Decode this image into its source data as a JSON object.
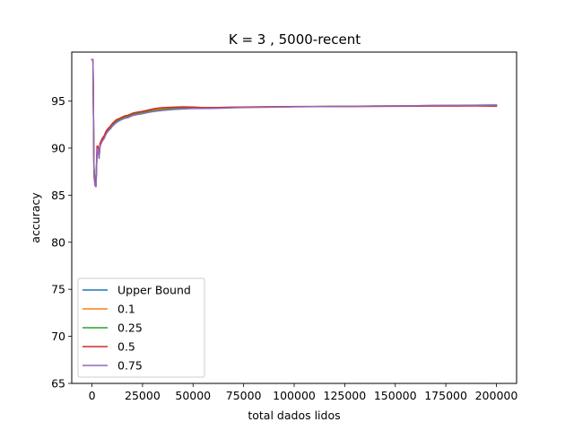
{
  "chart_data": {
    "type": "line",
    "title": "K = 3 , 5000-recent",
    "xlabel": "total dados lidos",
    "ylabel": "accuracy",
    "xlim": [
      -10000,
      210000
    ],
    "ylim": [
      65,
      100.2
    ],
    "xticks": [
      0,
      25000,
      50000,
      75000,
      100000,
      125000,
      150000,
      175000,
      200000
    ],
    "xtick_labels": [
      "0",
      "25000",
      "50000",
      "75000",
      "100000",
      "125000",
      "150000",
      "175000",
      "200000"
    ],
    "yticks": [
      65,
      70,
      75,
      80,
      85,
      90,
      95
    ],
    "ytick_labels": [
      "65",
      "70",
      "75",
      "80",
      "85",
      "90",
      "95"
    ],
    "legend_position": "lower-left",
    "grid": false,
    "series": [
      {
        "name": "Upper Bound",
        "color": "#1f77b4",
        "x": [
          0,
          500,
          1000,
          1500,
          2000,
          2500,
          3000,
          3500,
          4000,
          5000,
          6000,
          7000,
          8000,
          9000,
          10000,
          12000,
          14000,
          16000,
          18000,
          20000,
          22000,
          25000,
          28000,
          31000,
          35000,
          40000,
          45000,
          50000,
          55000,
          60000,
          70000,
          80000,
          90000,
          100000,
          110000,
          120000,
          130000,
          140000,
          150000,
          160000,
          170000,
          180000,
          190000,
          200000
        ],
        "y": [
          99.4,
          99.4,
          88,
          86.5,
          86,
          89.5,
          90,
          89,
          90.3,
          90.8,
          91.1,
          91.6,
          91.9,
          92.1,
          92.4,
          92.8,
          93,
          93.2,
          93.3,
          93.5,
          93.6,
          93.7,
          93.85,
          93.95,
          94.05,
          94.15,
          94.2,
          94.25,
          94.25,
          94.3,
          94.3,
          94.35,
          94.38,
          94.4,
          94.42,
          94.44,
          94.45,
          94.47,
          94.48,
          94.5,
          94.52,
          94.55,
          94.56,
          94.58
        ]
      },
      {
        "name": "0.1",
        "color": "#ff7f0e",
        "x": [
          0,
          500,
          1000,
          1500,
          2000,
          2500,
          3000,
          3500,
          4000,
          5000,
          6000,
          7000,
          8000,
          9000,
          10000,
          12000,
          14000,
          16000,
          18000,
          20000,
          22000,
          25000,
          28000,
          31000,
          35000,
          40000,
          45000,
          50000,
          55000,
          60000,
          70000,
          80000,
          90000,
          100000,
          110000,
          120000,
          130000,
          140000,
          150000,
          160000,
          170000,
          180000,
          190000,
          200000
        ],
        "y": [
          99.4,
          99.4,
          87.5,
          86.3,
          86.2,
          89.8,
          90.1,
          89.1,
          90.4,
          90.9,
          91.2,
          91.7,
          92,
          92.2,
          92.5,
          92.9,
          93.1,
          93.3,
          93.4,
          93.6,
          93.7,
          93.8,
          93.95,
          94.1,
          94.2,
          94.3,
          94.35,
          94.35,
          94.3,
          94.3,
          94.35,
          94.38,
          94.4,
          94.42,
          94.42,
          94.44,
          94.45,
          94.47,
          94.48,
          94.5,
          94.52,
          94.54,
          94.55,
          94.56
        ]
      },
      {
        "name": "0.25",
        "color": "#2ca02c",
        "x": [
          0,
          500,
          1000,
          1500,
          2000,
          2500,
          3000,
          3500,
          4000,
          5000,
          6000,
          7000,
          8000,
          9000,
          10000,
          12000,
          14000,
          16000,
          18000,
          20000,
          22000,
          25000,
          28000,
          31000,
          35000,
          40000,
          45000,
          50000,
          55000,
          60000,
          70000,
          80000,
          90000,
          100000,
          110000,
          120000,
          130000,
          140000,
          150000,
          160000,
          170000,
          180000,
          190000,
          200000
        ],
        "y": [
          99.4,
          99.4,
          87.8,
          86.4,
          86.1,
          89.6,
          90,
          89,
          90.3,
          90.8,
          91.1,
          91.6,
          91.9,
          92.1,
          92.4,
          92.85,
          93.05,
          93.25,
          93.35,
          93.55,
          93.65,
          93.75,
          93.9,
          94,
          94.1,
          94.2,
          94.25,
          94.28,
          94.27,
          94.3,
          94.32,
          94.36,
          94.38,
          94.4,
          94.41,
          94.43,
          94.44,
          94.46,
          94.47,
          94.49,
          94.5,
          94.52,
          94.53,
          94.55
        ]
      },
      {
        "name": "0.5",
        "color": "#d62728",
        "x": [
          0,
          500,
          1000,
          1500,
          2000,
          2500,
          3000,
          3500,
          4000,
          5000,
          6000,
          7000,
          8000,
          9000,
          10000,
          12000,
          14000,
          16000,
          18000,
          20000,
          22000,
          25000,
          28000,
          31000,
          35000,
          40000,
          45000,
          50000,
          55000,
          60000,
          70000,
          80000,
          90000,
          100000,
          110000,
          120000,
          130000,
          140000,
          150000,
          160000,
          170000,
          180000,
          190000,
          200000
        ],
        "y": [
          99.4,
          99.4,
          87.2,
          86.2,
          86.3,
          90.2,
          90.2,
          89.2,
          90.5,
          91,
          91.3,
          91.8,
          92.1,
          92.3,
          92.6,
          93,
          93.2,
          93.4,
          93.5,
          93.7,
          93.8,
          93.9,
          94.05,
          94.2,
          94.3,
          94.35,
          94.38,
          94.36,
          94.3,
          94.3,
          94.34,
          94.36,
          94.38,
          94.4,
          94.4,
          94.41,
          94.42,
          94.43,
          94.44,
          94.45,
          94.46,
          94.47,
          94.48,
          94.45
        ]
      },
      {
        "name": "0.75",
        "color": "#9467bd",
        "x": [
          0,
          500,
          1000,
          1500,
          2000,
          2500,
          3000,
          3500,
          4000,
          5000,
          6000,
          7000,
          8000,
          9000,
          10000,
          12000,
          14000,
          16000,
          18000,
          20000,
          22000,
          25000,
          28000,
          31000,
          35000,
          40000,
          45000,
          50000,
          55000,
          60000,
          70000,
          80000,
          90000,
          100000,
          110000,
          120000,
          130000,
          140000,
          150000,
          160000,
          170000,
          180000,
          190000,
          200000
        ],
        "y": [
          99.4,
          99.4,
          87,
          86,
          85.9,
          89.7,
          90,
          88.9,
          90.2,
          90.7,
          91,
          91.5,
          91.8,
          92,
          92.3,
          92.7,
          92.95,
          93.15,
          93.25,
          93.45,
          93.55,
          93.65,
          93.8,
          93.9,
          94,
          94.1,
          94.15,
          94.2,
          94.2,
          94.22,
          94.28,
          94.32,
          94.35,
          94.38,
          94.4,
          94.42,
          94.44,
          94.46,
          94.48,
          94.5,
          94.52,
          94.53,
          94.54,
          94.55
        ]
      }
    ]
  }
}
